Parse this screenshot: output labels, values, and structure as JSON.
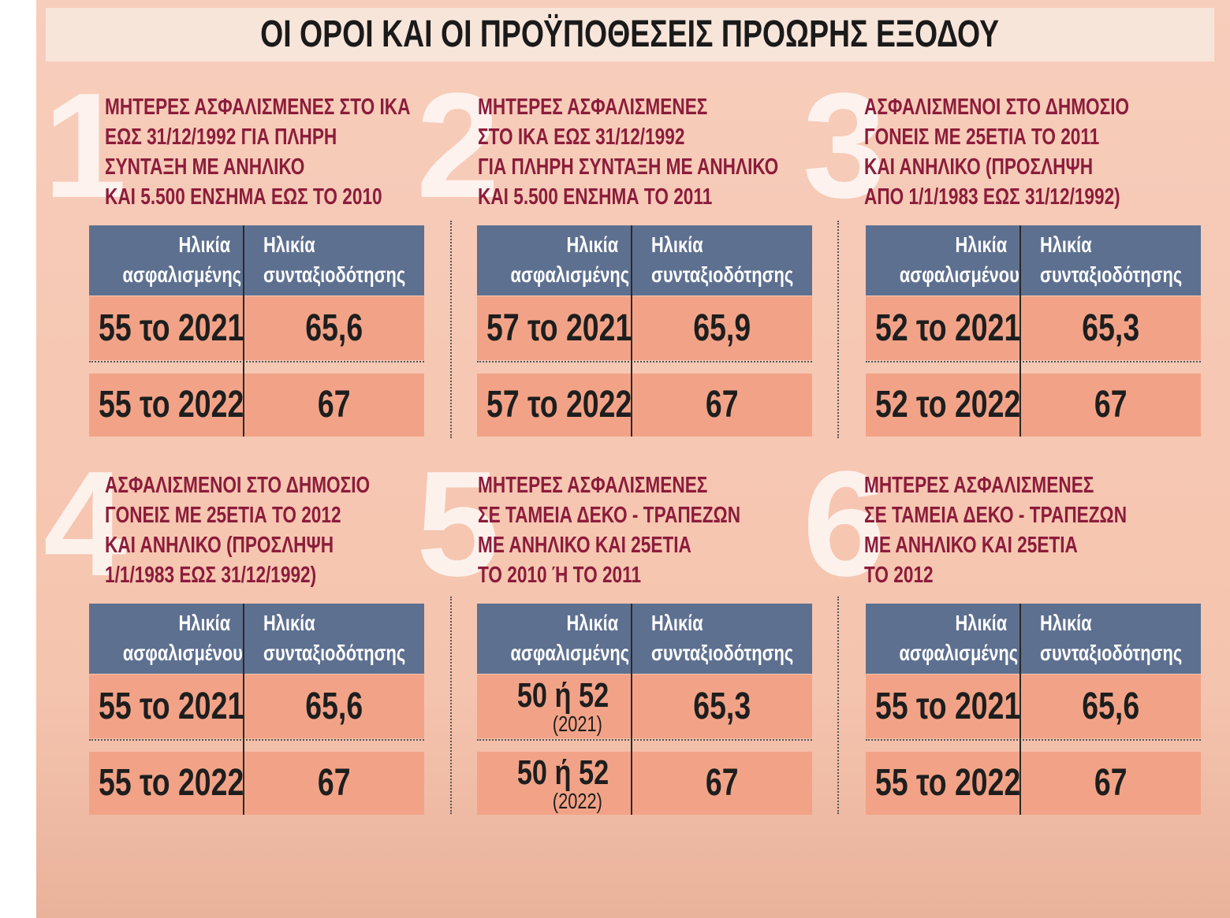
{
  "title": "ΟΙ ΟΡΟΙ ΚΑΙ ΟΙ ΠΡΟΫΠΟΘΕΣΕΙΣ ΠΡΟΩΡΗΣ ΕΞΟΔΟΥ",
  "panels": [
    {
      "number": "1",
      "caption": [
        "ΜΗΤΕΡΕΣ ΑΣΦΑΛΙΣΜΕΝΕΣ ΣΤΟ ΙΚΑ",
        "ΕΩΣ 31/12/1992 ΓΙΑ ΠΛΗΡΗ",
        "ΣΥΝΤΑΞΗ ΜΕ ΑΝΗΛΙΚΟ",
        "ΚΑΙ 5.500 ΕΝΣΗΜΑ ΕΩΣ ΤΟ 2010"
      ],
      "header": [
        [
          "Ηλικία",
          "ασφαλισμένης"
        ],
        [
          "Ηλικία",
          "συνταξιοδότησης"
        ]
      ],
      "rows": [
        {
          "age": "55 το 2021",
          "pension": "65,6"
        },
        {
          "age": "55 το 2022",
          "pension": "67"
        }
      ]
    },
    {
      "number": "2",
      "caption": [
        "ΜΗΤΕΡΕΣ ΑΣΦΑΛΙΣΜΕΝΕΣ",
        "ΣΤΟ ΙΚΑ ΕΩΣ 31/12/1992",
        "ΓΙΑ ΠΛΗΡΗ ΣΥΝΤΑΞΗ ΜΕ ΑΝΗΛΙΚΟ",
        "ΚΑΙ 5.500 ΕΝΣΗΜΑ ΤΟ 2011"
      ],
      "header": [
        [
          "Ηλικία",
          "ασφαλισμένης"
        ],
        [
          "Ηλικία",
          "συνταξιοδότησης"
        ]
      ],
      "rows": [
        {
          "age": "57 το 2021",
          "pension": "65,9"
        },
        {
          "age": "57 το 2022",
          "pension": "67"
        }
      ]
    },
    {
      "number": "3",
      "caption": [
        "ΑΣΦΑΛΙΣΜΕΝΟΙ ΣΤΟ ΔΗΜΟΣΙΟ",
        "ΓΟΝΕΙΣ ΜΕ 25ΕΤΙΑ ΤΟ 2011",
        "ΚΑΙ ΑΝΗΛΙΚΟ (ΠΡΟΣΛΗΨΗ",
        "ΑΠΟ 1/1/1983 ΕΩΣ 31/12/1992)"
      ],
      "header": [
        [
          "Ηλικία",
          "ασφαλισμένου"
        ],
        [
          "Ηλικία",
          "συνταξιοδότησης"
        ]
      ],
      "rows": [
        {
          "age": "52 το 2021",
          "pension": "65,3"
        },
        {
          "age": "52 το 2022",
          "pension": "67"
        }
      ]
    },
    {
      "number": "4",
      "caption": [
        "ΑΣΦΑΛΙΣΜΕΝΟΙ ΣΤΟ ΔΗΜΟΣΙΟ",
        "ΓΟΝΕΙΣ ΜΕ 25ΕΤΙΑ ΤΟ 2012",
        "ΚΑΙ ΑΝΗΛΙΚΟ (ΠΡΟΣΛΗΨΗ",
        "1/1/1983 ΕΩΣ 31/12/1992)"
      ],
      "header": [
        [
          "Ηλικία",
          "ασφαλισμένου"
        ],
        [
          "Ηλικία",
          "συνταξιοδότησης"
        ]
      ],
      "rows": [
        {
          "age": "55 το 2021",
          "pension": "65,6"
        },
        {
          "age": "55 το 2022",
          "pension": "67"
        }
      ]
    },
    {
      "number": "5",
      "caption": [
        "ΜΗΤΕΡΕΣ ΑΣΦΑΛΙΣΜΕΝΕΣ",
        "ΣΕ ΤΑΜΕΙΑ ΔΕΚΟ - ΤΡΑΠΕΖΩΝ",
        "ΜΕ ΑΝΗΛΙΚΟ ΚΑΙ 25ΕΤΙΑ",
        "ΤΟ 2010 Ή ΤΟ 2011"
      ],
      "header": [
        [
          "Ηλικία",
          "ασφαλισμένης"
        ],
        [
          "Ηλικία",
          "συνταξιοδότησης"
        ]
      ],
      "rows": [
        {
          "age": "50 ή 52",
          "note": "(2021)",
          "pension": "65,3"
        },
        {
          "age": "50 ή 52",
          "note": "(2022)",
          "pension": "67"
        }
      ]
    },
    {
      "number": "6",
      "caption": [
        "ΜΗΤΕΡΕΣ ΑΣΦΑΛΙΣΜΕΝΕΣ",
        "ΣΕ ΤΑΜΕΙΑ ΔΕΚΟ - ΤΡΑΠΕΖΩΝ",
        "ΜΕ ΑΝΗΛΙΚΟ ΚΑΙ 25ΕΤΙΑ",
        "ΤΟ 2012"
      ],
      "header": [
        [
          "Ηλικία",
          "ασφαλισμένης"
        ],
        [
          "Ηλικία",
          "συνταξιοδότησης"
        ]
      ],
      "rows": [
        {
          "age": "55 το 2021",
          "pension": "65,6"
        },
        {
          "age": "55 το 2022",
          "pension": "67"
        }
      ]
    }
  ]
}
